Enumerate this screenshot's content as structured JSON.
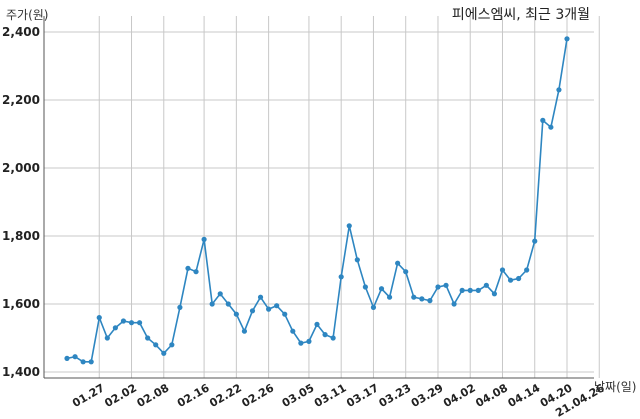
{
  "chart_data": {
    "type": "line",
    "title": "피에스엠씨, 최근 3개월",
    "ylabel": "주가(원)",
    "xlabel": "날짜(일)",
    "ylim": [
      1400,
      2440
    ],
    "yticks": [
      1400,
      1600,
      1800,
      2000,
      2200,
      2400
    ],
    "ytick_labels": [
      "1,400",
      "1,600",
      "1,800",
      "2,000",
      "2,200",
      "2,400"
    ],
    "xtick_labels": [
      "01.27",
      "02.02",
      "02.08",
      "02.16",
      "02.22",
      "02.26",
      "03.05",
      "03.11",
      "03.17",
      "03.23",
      "03.29",
      "04.02",
      "04.08",
      "04.14",
      "04.20",
      "21.04.26"
    ],
    "xtick_index": [
      4,
      8,
      12,
      17,
      21,
      25,
      30,
      34,
      38,
      42,
      46,
      50,
      54,
      58,
      62,
      66
    ],
    "grid": true,
    "color": "#2e86c1",
    "values": [
      1440,
      1445,
      1430,
      1430,
      1560,
      1500,
      1530,
      1550,
      1545,
      1545,
      1500,
      1480,
      1455,
      1480,
      1590,
      1705,
      1695,
      1790,
      1600,
      1630,
      1600,
      1570,
      1520,
      1580,
      1620,
      1585,
      1595,
      1570,
      1520,
      1485,
      1490,
      1540,
      1510,
      1500,
      1680,
      1830,
      1730,
      1650,
      1590,
      1645,
      1620,
      1720,
      1695,
      1620,
      1615,
      1610,
      1650,
      1655,
      1600,
      1640,
      1640,
      1640,
      1655,
      1630,
      1700,
      1670,
      1675,
      1700,
      1785,
      2140,
      2120,
      2230,
      2380
    ]
  }
}
